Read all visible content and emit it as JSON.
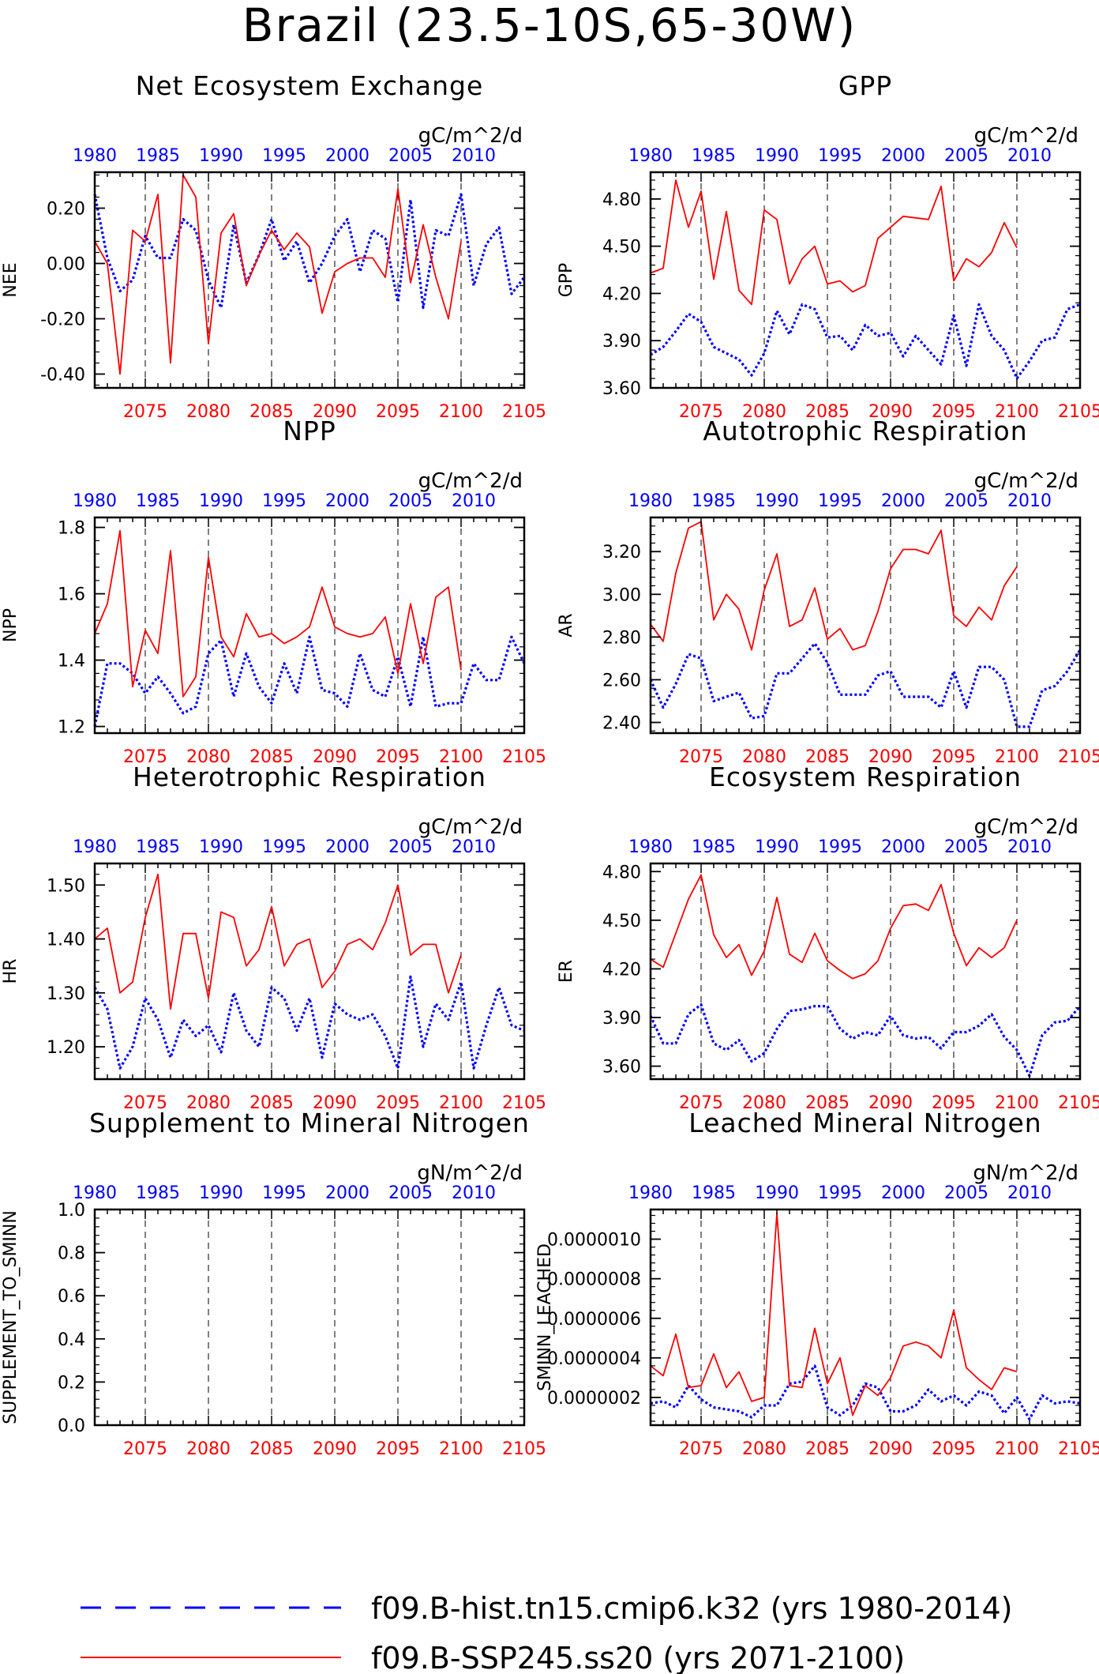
{
  "title": "Brazil (23.5-10S,65-30W)",
  "colors": {
    "hist": "#0000ff",
    "ssp": "#ff0000",
    "axis": "#000000",
    "grid": "#000000"
  },
  "legend": {
    "entries": [
      {
        "label": "f09.B-hist.tn15.cmip6.k32 (yrs 1980-2014)",
        "color": "#0000ff",
        "style": "dashed"
      },
      {
        "label": "f09.B-SSP245.ss20 (yrs 2071-2100)",
        "color": "#ff0000",
        "style": "solid"
      }
    ]
  },
  "chart_data": [
    {
      "type": "line",
      "title": "Net Ecosystem Exchange",
      "ylabel": "NEE",
      "units": "gC/m^2/d",
      "ylim": [
        -0.45,
        0.33
      ],
      "yticks": [
        -0.4,
        -0.2,
        0.0,
        0.2
      ],
      "ytick_labels": [
        "-0.40",
        "-0.20",
        "0.00",
        "0.20"
      ],
      "x_bottom": {
        "xlim": [
          2071,
          2105
        ],
        "ticks": [
          2075,
          2080,
          2085,
          2090,
          2095,
          2100,
          2105
        ]
      },
      "x_top": {
        "xlim": [
          1980,
          2014
        ],
        "ticks": [
          1980,
          1985,
          1990,
          1995,
          2000,
          2005,
          2010
        ]
      },
      "series": [
        {
          "name": "f09.B-hist.tn15.cmip6.k32 (yrs 1980-2014)",
          "style": "dashed",
          "color": "#0000ff",
          "x_axis": "top",
          "x_start": 1980,
          "values": [
            0.25,
            0.02,
            -0.1,
            -0.06,
            0.1,
            0.02,
            0.02,
            0.16,
            0.12,
            -0.06,
            -0.16,
            0.14,
            -0.07,
            0.03,
            0.16,
            0.01,
            0.08,
            -0.07,
            0.0,
            0.1,
            0.16,
            -0.03,
            0.12,
            0.09,
            -0.14,
            0.23,
            -0.16,
            0.12,
            0.1,
            0.25,
            -0.08,
            0.07,
            0.13,
            -0.11,
            -0.05
          ]
        },
        {
          "name": "f09.B-SSP245.ss20 (yrs 2071-2100)",
          "style": "solid",
          "color": "#ff0000",
          "x_axis": "bottom",
          "x_start": 2071,
          "values": [
            0.08,
            0.0,
            -0.4,
            0.12,
            0.08,
            0.25,
            -0.36,
            0.32,
            0.24,
            -0.29,
            0.11,
            0.18,
            -0.08,
            0.03,
            0.12,
            0.05,
            0.11,
            0.06,
            -0.18,
            -0.03,
            0.0,
            0.02,
            0.02,
            -0.05,
            0.27,
            -0.07,
            0.14,
            -0.05,
            -0.2,
            0.08
          ]
        }
      ]
    },
    {
      "type": "line",
      "title": "GPP",
      "ylabel": "GPP",
      "units": "gC/m^2/d",
      "ylim": [
        3.6,
        4.97
      ],
      "yticks": [
        3.6,
        3.9,
        4.2,
        4.5,
        4.8
      ],
      "ytick_labels": [
        "3.60",
        "3.90",
        "4.20",
        "4.50",
        "4.80"
      ],
      "x_bottom": {
        "xlim": [
          2071,
          2105
        ],
        "ticks": [
          2075,
          2080,
          2085,
          2090,
          2095,
          2100,
          2105
        ]
      },
      "x_top": {
        "xlim": [
          1980,
          2014
        ],
        "ticks": [
          1980,
          1985,
          1990,
          1995,
          2000,
          2005,
          2010
        ]
      },
      "series": [
        {
          "name": "f09.B-hist.tn15.cmip6.k32 (yrs 1980-2014)",
          "style": "dashed",
          "color": "#0000ff",
          "x_axis": "top",
          "x_start": 1980,
          "values": [
            3.81,
            3.86,
            3.96,
            4.07,
            4.02,
            3.86,
            3.82,
            3.78,
            3.68,
            3.82,
            4.09,
            3.94,
            4.13,
            4.1,
            3.92,
            3.93,
            3.84,
            4.0,
            3.93,
            3.95,
            3.8,
            3.93,
            3.84,
            3.75,
            4.06,
            3.74,
            4.13,
            3.93,
            3.84,
            3.66,
            3.77,
            3.9,
            3.92,
            4.1,
            4.13
          ]
        },
        {
          "name": "f09.B-SSP245.ss20 (yrs 2071-2100)",
          "style": "solid",
          "color": "#ff0000",
          "x_axis": "bottom",
          "x_start": 2071,
          "values": [
            4.33,
            4.36,
            4.92,
            4.62,
            4.85,
            4.29,
            4.72,
            4.22,
            4.13,
            4.73,
            4.67,
            4.26,
            4.42,
            4.5,
            4.26,
            4.28,
            4.21,
            4.25,
            4.55,
            4.62,
            4.69,
            4.68,
            4.67,
            4.88,
            4.28,
            4.42,
            4.37,
            4.46,
            4.65,
            4.49
          ]
        }
      ]
    },
    {
      "type": "line",
      "title": "NPP",
      "ylabel": "NPP",
      "units": "gC/m^2/d",
      "ylim": [
        1.18,
        1.83
      ],
      "yticks": [
        1.2,
        1.4,
        1.6,
        1.8
      ],
      "ytick_labels": [
        "1.2",
        "1.4",
        "1.6",
        "1.8"
      ],
      "x_bottom": {
        "xlim": [
          2071,
          2105
        ],
        "ticks": [
          2075,
          2080,
          2085,
          2090,
          2095,
          2100,
          2105
        ]
      },
      "x_top": {
        "xlim": [
          1980,
          2014
        ],
        "ticks": [
          1980,
          1985,
          1990,
          1995,
          2000,
          2005,
          2010
        ]
      },
      "series": [
        {
          "name": "f09.B-hist.tn15.cmip6.k32 (yrs 1980-2014)",
          "style": "dashed",
          "color": "#0000ff",
          "x_axis": "top",
          "x_start": 1980,
          "values": [
            1.2,
            1.39,
            1.39,
            1.36,
            1.3,
            1.35,
            1.3,
            1.24,
            1.26,
            1.42,
            1.46,
            1.29,
            1.42,
            1.32,
            1.27,
            1.39,
            1.3,
            1.47,
            1.31,
            1.3,
            1.26,
            1.42,
            1.31,
            1.29,
            1.41,
            1.26,
            1.47,
            1.26,
            1.27,
            1.27,
            1.39,
            1.34,
            1.34,
            1.47,
            1.39
          ]
        },
        {
          "name": "f09.B-SSP245.ss20 (yrs 2071-2100)",
          "style": "solid",
          "color": "#ff0000",
          "x_axis": "bottom",
          "x_start": 2071,
          "values": [
            1.48,
            1.57,
            1.79,
            1.32,
            1.49,
            1.42,
            1.73,
            1.29,
            1.35,
            1.71,
            1.47,
            1.41,
            1.54,
            1.47,
            1.48,
            1.45,
            1.47,
            1.5,
            1.62,
            1.5,
            1.48,
            1.47,
            1.48,
            1.53,
            1.36,
            1.57,
            1.39,
            1.59,
            1.62,
            1.37
          ]
        }
      ]
    },
    {
      "type": "line",
      "title": "Autotrophic Respiration",
      "ylabel": "AR",
      "units": "gC/m^2/d",
      "ylim": [
        2.35,
        3.36
      ],
      "yticks": [
        2.4,
        2.6,
        2.8,
        3.0,
        3.2
      ],
      "ytick_labels": [
        "2.40",
        "2.60",
        "2.80",
        "3.00",
        "3.20"
      ],
      "x_bottom": {
        "xlim": [
          2071,
          2105
        ],
        "ticks": [
          2075,
          2080,
          2085,
          2090,
          2095,
          2100,
          2105
        ]
      },
      "x_top": {
        "xlim": [
          1980,
          2014
        ],
        "ticks": [
          1980,
          1985,
          1990,
          1995,
          2000,
          2005,
          2010
        ]
      },
      "series": [
        {
          "name": "f09.B-hist.tn15.cmip6.k32 (yrs 1980-2014)",
          "style": "dashed",
          "color": "#0000ff",
          "x_axis": "top",
          "x_start": 1980,
          "values": [
            2.6,
            2.47,
            2.58,
            2.72,
            2.7,
            2.5,
            2.52,
            2.54,
            2.42,
            2.43,
            2.63,
            2.63,
            2.7,
            2.77,
            2.68,
            2.53,
            2.53,
            2.53,
            2.62,
            2.64,
            2.52,
            2.52,
            2.52,
            2.47,
            2.64,
            2.47,
            2.66,
            2.66,
            2.6,
            2.38,
            2.38,
            2.55,
            2.57,
            2.64,
            2.74
          ]
        },
        {
          "name": "f09.B-SSP245.ss20 (yrs 2071-2100)",
          "style": "solid",
          "color": "#ff0000",
          "x_axis": "bottom",
          "x_start": 2071,
          "values": [
            2.86,
            2.78,
            3.1,
            3.31,
            3.34,
            2.88,
            3.0,
            2.93,
            2.74,
            3.02,
            3.19,
            2.85,
            2.88,
            3.03,
            2.79,
            2.84,
            2.74,
            2.76,
            2.92,
            3.12,
            3.21,
            3.21,
            3.19,
            3.3,
            2.9,
            2.85,
            2.94,
            2.88,
            3.04,
            3.13
          ]
        }
      ]
    },
    {
      "type": "line",
      "title": "Heterotrophic Respiration",
      "ylabel": "HR",
      "units": "gC/m^2/d",
      "ylim": [
        1.14,
        1.54
      ],
      "yticks": [
        1.2,
        1.3,
        1.4,
        1.5
      ],
      "ytick_labels": [
        "1.20",
        "1.30",
        "1.40",
        "1.50"
      ],
      "x_bottom": {
        "xlim": [
          2071,
          2105
        ],
        "ticks": [
          2075,
          2080,
          2085,
          2090,
          2095,
          2100,
          2105
        ]
      },
      "x_top": {
        "xlim": [
          1980,
          2014
        ],
        "ticks": [
          1980,
          1985,
          1990,
          1995,
          2000,
          2005,
          2010
        ]
      },
      "series": [
        {
          "name": "f09.B-hist.tn15.cmip6.k32 (yrs 1980-2014)",
          "style": "dashed",
          "color": "#0000ff",
          "x_axis": "top",
          "x_start": 1980,
          "values": [
            1.31,
            1.27,
            1.16,
            1.2,
            1.29,
            1.25,
            1.18,
            1.25,
            1.22,
            1.24,
            1.19,
            1.3,
            1.23,
            1.2,
            1.31,
            1.29,
            1.23,
            1.29,
            1.18,
            1.28,
            1.26,
            1.25,
            1.26,
            1.22,
            1.16,
            1.33,
            1.2,
            1.28,
            1.25,
            1.32,
            1.16,
            1.24,
            1.31,
            1.24,
            1.23
          ]
        },
        {
          "name": "f09.B-SSP245.ss20 (yrs 2071-2100)",
          "style": "solid",
          "color": "#ff0000",
          "x_axis": "bottom",
          "x_start": 2071,
          "values": [
            1.4,
            1.42,
            1.3,
            1.32,
            1.44,
            1.52,
            1.27,
            1.41,
            1.41,
            1.29,
            1.45,
            1.44,
            1.35,
            1.38,
            1.46,
            1.35,
            1.39,
            1.4,
            1.31,
            1.34,
            1.39,
            1.4,
            1.38,
            1.43,
            1.5,
            1.37,
            1.39,
            1.39,
            1.3,
            1.37
          ]
        }
      ]
    },
    {
      "type": "line",
      "title": "Ecosystem Respiration",
      "ylabel": "ER",
      "units": "gC/m^2/d",
      "ylim": [
        3.52,
        4.85
      ],
      "yticks": [
        3.6,
        3.9,
        4.2,
        4.5,
        4.8
      ],
      "ytick_labels": [
        "3.60",
        "3.90",
        "4.20",
        "4.50",
        "4.80"
      ],
      "x_bottom": {
        "xlim": [
          2071,
          2105
        ],
        "ticks": [
          2075,
          2080,
          2085,
          2090,
          2095,
          2100,
          2105
        ]
      },
      "x_top": {
        "xlim": [
          1980,
          2014
        ],
        "ticks": [
          1980,
          1985,
          1990,
          1995,
          2000,
          2005,
          2010
        ]
      },
      "series": [
        {
          "name": "f09.B-hist.tn15.cmip6.k32 (yrs 1980-2014)",
          "style": "dashed",
          "color": "#0000ff",
          "x_axis": "top",
          "x_start": 1980,
          "values": [
            3.91,
            3.74,
            3.74,
            3.92,
            3.98,
            3.74,
            3.7,
            3.76,
            3.63,
            3.68,
            3.83,
            3.94,
            3.95,
            3.97,
            3.97,
            3.83,
            3.77,
            3.81,
            3.79,
            3.91,
            3.79,
            3.77,
            3.78,
            3.71,
            3.81,
            3.81,
            3.85,
            3.92,
            3.78,
            3.7,
            3.54,
            3.79,
            3.87,
            3.88,
            3.97
          ]
        },
        {
          "name": "f09.B-SSP245.ss20 (yrs 2071-2100)",
          "style": "solid",
          "color": "#ff0000",
          "x_axis": "bottom",
          "x_start": 2071,
          "values": [
            4.26,
            4.21,
            4.42,
            4.63,
            4.78,
            4.41,
            4.27,
            4.35,
            4.16,
            4.31,
            4.64,
            4.29,
            4.24,
            4.42,
            4.25,
            4.19,
            4.14,
            4.17,
            4.25,
            4.45,
            4.59,
            4.6,
            4.56,
            4.72,
            4.42,
            4.22,
            4.33,
            4.27,
            4.33,
            4.5
          ]
        }
      ]
    },
    {
      "type": "line",
      "title": "Supplement to Mineral Nitrogen",
      "ylabel": "SUPPLEMENT_TO_SMINN",
      "units": "gN/m^2/d",
      "ylim": [
        0.0,
        1.0
      ],
      "yticks": [
        0.0,
        0.2,
        0.4,
        0.6,
        0.8,
        1.0
      ],
      "ytick_labels": [
        "0.0",
        "0.2",
        "0.4",
        "0.6",
        "0.8",
        "1.0"
      ],
      "x_bottom": {
        "xlim": [
          2071,
          2105
        ],
        "ticks": [
          2075,
          2080,
          2085,
          2090,
          2095,
          2100,
          2105
        ]
      },
      "x_top": {
        "xlim": [
          1980,
          2014
        ],
        "ticks": [
          1980,
          1985,
          1990,
          1995,
          2000,
          2005,
          2010
        ]
      },
      "series": []
    },
    {
      "type": "line",
      "title": "Leached Mineral Nitrogen",
      "ylabel": "SMINN_LEACHED",
      "units": "gN/m^2/d",
      "ylim": [
        6e-08,
        1.15e-06
      ],
      "yticks": [
        2e-07,
        4e-07,
        6e-07,
        8e-07,
        1e-06
      ],
      "ytick_labels": [
        "0.0000002",
        "0.0000004",
        "0.0000006",
        "0.0000008",
        "0.0000010"
      ],
      "x_bottom": {
        "xlim": [
          2071,
          2105
        ],
        "ticks": [
          2075,
          2080,
          2085,
          2090,
          2095,
          2100,
          2105
        ]
      },
      "x_top": {
        "xlim": [
          1980,
          2014
        ],
        "ticks": [
          1980,
          1985,
          1990,
          1995,
          2000,
          2005,
          2010
        ]
      },
      "series": [
        {
          "name": "f09.B-hist.tn15.cmip6.k32 (yrs 1980-2014)",
          "style": "dashed",
          "color": "#0000ff",
          "x_axis": "top",
          "x_start": 1980,
          "values": [
            1.7e-07,
            1.8e-07,
            1.5e-07,
            2.6e-07,
            1.9e-07,
            1.5e-07,
            1.4e-07,
            1.3e-07,
            1e-07,
            1.6e-07,
            1.6e-07,
            2.7e-07,
            2.8e-07,
            3.6e-07,
            1.5e-07,
            1.1e-07,
            1.6e-07,
            2.7e-07,
            2.5e-07,
            1.3e-07,
            1.3e-07,
            1.6e-07,
            2.4e-07,
            1.8e-07,
            2.1e-07,
            1.6e-07,
            2.3e-07,
            2.1e-07,
            1.2e-07,
            2e-07,
            9e-08,
            2.1e-07,
            1.7e-07,
            1.8e-07,
            1.7e-07
          ]
        },
        {
          "name": "f09.B-SSP245.ss20 (yrs 2071-2100)",
          "style": "solid",
          "color": "#ff0000",
          "x_axis": "bottom",
          "x_start": 2071,
          "values": [
            3.6e-07,
            3.1e-07,
            5.2e-07,
            2.5e-07,
            2.6e-07,
            4.2e-07,
            2.5e-07,
            3.3e-07,
            1.8e-07,
            2e-07,
            1.13e-06,
            2.6e-07,
            2.5e-07,
            5.5e-07,
            2.7e-07,
            4e-07,
            1.1e-07,
            2.6e-07,
            2.1e-07,
            3e-07,
            4.6e-07,
            4.8e-07,
            4.6e-07,
            4e-07,
            6.4e-07,
            3.5e-07,
            2.9e-07,
            2.4e-07,
            3.5e-07,
            3.3e-07
          ]
        }
      ]
    }
  ]
}
